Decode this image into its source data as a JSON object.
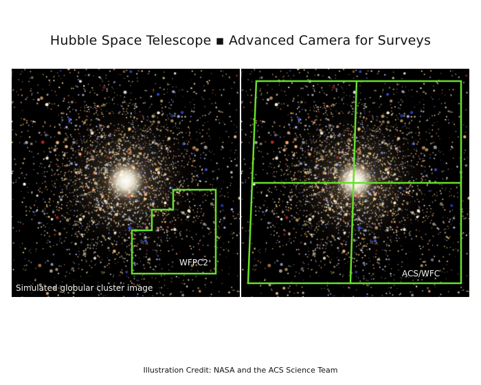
{
  "title": "Hubble Space Telescope ▪ Advanced Camera for Surveys",
  "left_panel": {
    "caption": "Simulated globular cluster image",
    "footprint_label": "WFPC2"
  },
  "right_panel": {
    "footprint_label": "ACS/WFC"
  },
  "credit": "Illustration Credit: NASA and the ACS Science Team",
  "colors": {
    "footprint_outline": "#66e02a",
    "background": "#000000"
  }
}
